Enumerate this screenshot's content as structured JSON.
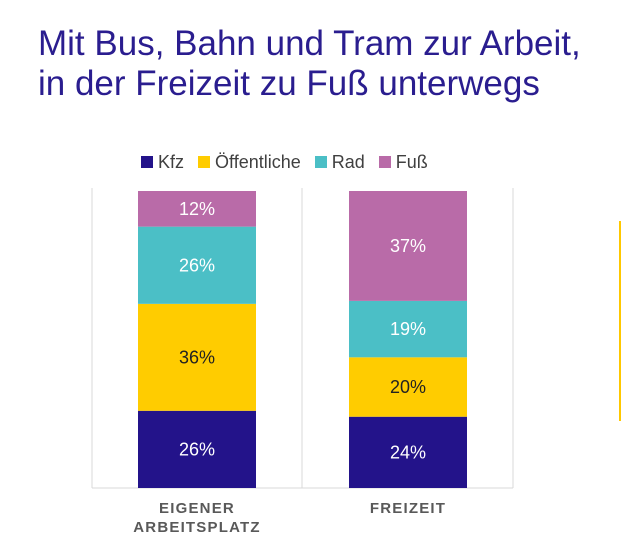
{
  "title_lines": [
    "Mit Bus, Bahn und Tram zur Arbeit,",
    "in der Freizeit zu Fuß unterwegs"
  ],
  "colors": {
    "title": "#2a1d8f",
    "Kfz": "#23138a",
    "Öffentliche": "#ffcc00",
    "Rad": "#4bbfc6",
    "Fuß": "#b96ba8"
  },
  "chart_data": {
    "type": "bar",
    "stacked": true,
    "orientation": "vertical",
    "title": "Mit Bus, Bahn und Tram zur Arbeit, in der Freizeit zu Fuß unterwegs",
    "categories": [
      "EIGENER ARBEITSPLATZ",
      "FREIZEIT"
    ],
    "category_label_lines": [
      [
        "EIGENER",
        "ARBEITSPLATZ"
      ],
      [
        "FREIZEIT"
      ]
    ],
    "series": [
      {
        "name": "Kfz",
        "values": [
          26,
          24
        ],
        "labels": [
          "26%",
          "24%"
        ]
      },
      {
        "name": "Öffentliche",
        "values": [
          36,
          20
        ],
        "labels": [
          "36%",
          "20%"
        ]
      },
      {
        "name": "Rad",
        "values": [
          26,
          19
        ],
        "labels": [
          "26%",
          "19%"
        ]
      },
      {
        "name": "Fuß",
        "values": [
          12,
          37
        ],
        "labels": [
          "12%",
          "37%"
        ]
      }
    ],
    "unit": "%",
    "ylim": [
      0,
      100
    ],
    "legend_position": "top",
    "grid": false
  }
}
